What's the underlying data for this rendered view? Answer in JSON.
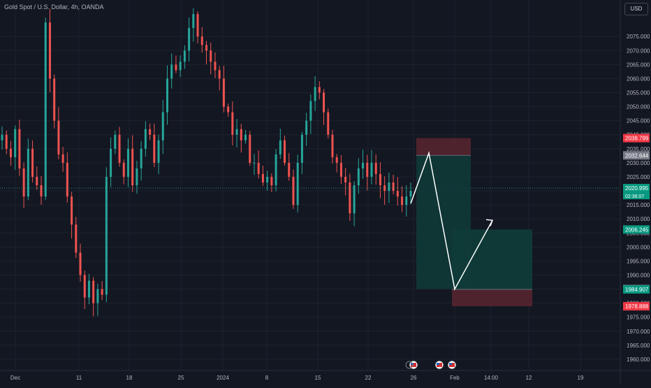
{
  "header": {
    "symbol_title": "Gold Spot / U.S. Dollar, 4h, OANDA",
    "currency": "USD"
  },
  "colors": {
    "background": "#131722",
    "up": "#26a69a",
    "down": "#ef5350",
    "grid": "#1e222d",
    "axis_text": "#b2b5be",
    "stop_zone": "#5b2630",
    "target_zone": "#0f3b38",
    "arrow": "#ffffff"
  },
  "chart_data": {
    "type": "candlestick",
    "title": "Gold Spot / U.S. Dollar, 4h, OANDA",
    "ylim": [
      1956,
      2088
    ],
    "y_ticks": [
      "2075.000",
      "2070.000",
      "2065.000",
      "2060.000",
      "2055.000",
      "2050.000",
      "2045.000",
      "2040.000",
      "2035.000",
      "2030.000",
      "2025.000",
      "2020.000",
      "2015.000",
      "2010.000",
      "2005.000",
      "2000.000",
      "1995.000",
      "1990.000",
      "1985.000",
      "1980.000",
      "1975.000",
      "1970.000",
      "1965.000",
      "1960.000"
    ],
    "x_ticks": [
      "Dec",
      "11",
      "18",
      "25",
      "2024",
      "8",
      "15",
      "22",
      "26",
      "Feb",
      "14:00",
      "12",
      "19"
    ],
    "price_close": [
      2040,
      2035,
      2032,
      2042,
      2028,
      2018,
      2035,
      2025,
      2022,
      2018,
      2080,
      2060,
      2045,
      2033,
      2030,
      2018,
      2008,
      1998,
      1990,
      1982,
      1988,
      1980,
      1985,
      1983,
      2025,
      2035,
      2040,
      2030,
      2025,
      2035,
      2022,
      2028,
      2035,
      2042,
      2040,
      2030,
      2038,
      2048,
      2060,
      2065,
      2063,
      2066,
      2070,
      2078,
      2083,
      2075,
      2072,
      2070,
      2066,
      2063,
      2060,
      2050,
      2048,
      2040,
      2042,
      2038,
      2040,
      2030,
      2030,
      2026,
      2023,
      2025,
      2022,
      2033,
      2038,
      2030,
      2025,
      2015,
      2030,
      2040,
      2045,
      2052,
      2057,
      2055,
      2048,
      2040,
      2032,
      2030,
      2025,
      2023,
      2012,
      2022,
      2028,
      2030,
      2025,
      2030,
      2026,
      2022,
      2020,
      2023,
      2020,
      2018,
      2015,
      2018,
      2020
    ],
    "price_labels": [
      {
        "value": 2038.799,
        "text": "2038.799",
        "color": "#f23645"
      },
      {
        "value": 2032.644,
        "text": "2032.644",
        "color": "#787b86"
      },
      {
        "value": 2020.995,
        "text": "2020.995",
        "color": "#089981"
      },
      {
        "value": 2006.245,
        "text": "2006.245",
        "color": "#089981"
      },
      {
        "value": 1985.049,
        "text": "1985.049",
        "color": "#787b86"
      },
      {
        "value": 1984.907,
        "text": "1984.907",
        "color": "#089981"
      },
      {
        "value": 1978.888,
        "text": "1978.888",
        "color": "#f23645"
      }
    ],
    "countdown": "02:36:07",
    "positions": [
      {
        "kind": "short",
        "entry": 2032.644,
        "stop": 2038.799,
        "target": 1985.049
      },
      {
        "kind": "long",
        "entry": 1984.907,
        "stop": 1978.888,
        "target": 2006.245
      }
    ],
    "projected_path": [
      {
        "price": 2015.5
      },
      {
        "price": 2033.5
      },
      {
        "price": 1985.0
      },
      {
        "price": 2009.5
      }
    ]
  }
}
